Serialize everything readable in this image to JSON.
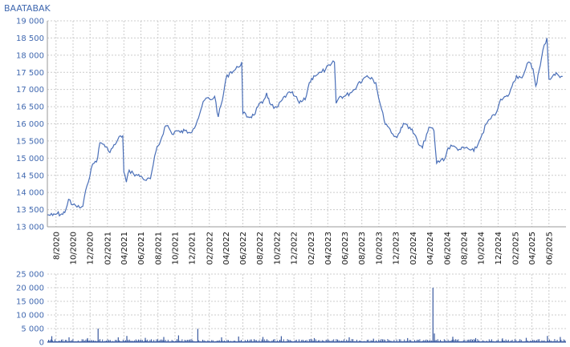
{
  "chart_data": [
    {
      "type": "line",
      "title": "BAATABAK",
      "xlabel": "",
      "ylabel": "",
      "ylim": [
        13000,
        19000
      ],
      "y_ticks": [
        13000,
        13500,
        14000,
        14500,
        15000,
        15500,
        16000,
        16500,
        17000,
        17500,
        18000,
        18500,
        19000
      ],
      "y_tick_labels": [
        "13 000",
        "13 500",
        "14 000",
        "14 500",
        "15 000",
        "15 500",
        "16 000",
        "16 500",
        "17 000",
        "17 500",
        "18 000",
        "18 500",
        "19 000"
      ],
      "x_ticks": [
        "2020-08",
        "2020-10",
        "2020-12",
        "2021-02",
        "2021-04",
        "2021-06",
        "2021-08",
        "2021-10",
        "2021-12",
        "2022-02",
        "2022-04",
        "2022-06",
        "2022-08",
        "2022-10",
        "2022-12",
        "2023-02",
        "2023-04",
        "2023-06",
        "2023-08",
        "2023-10",
        "2023-12",
        "2024-02",
        "2024-04",
        "2024-06",
        "2024-08",
        "2024-10",
        "2024-12",
        "2025-02",
        "2025-04",
        "2025-06"
      ],
      "x_tick_labels": [
        "8/2020",
        "10/2020",
        "12/2020",
        "02/2021",
        "04/2021",
        "06/2021",
        "08/2021",
        "10/2021",
        "12/2021",
        "02/2022",
        "04/2022",
        "06/2022",
        "08/2022",
        "10/2022",
        "12/2022",
        "02/2023",
        "04/2023",
        "06/2023",
        "08/2023",
        "10/2023",
        "12/2023",
        "02/2024",
        "04/2024",
        "06/2024",
        "08/2024",
        "10/2024",
        "12/2024",
        "02/2025",
        "04/2025",
        "06/2025"
      ],
      "xlim": [
        "2020-07-01",
        "2025-08-01"
      ],
      "grid": true,
      "color": "#4a6fb8",
      "series": [
        {
          "points": [
            [
              "2020-07-01",
              13350
            ],
            [
              "2020-07-20",
              13330
            ],
            [
              "2020-08-05",
              13380
            ],
            [
              "2020-08-25",
              13360
            ],
            [
              "2020-09-05",
              13500
            ],
            [
              "2020-09-15",
              13800
            ],
            [
              "2020-09-25",
              13650
            ],
            [
              "2020-10-10",
              13620
            ],
            [
              "2020-10-25",
              13550
            ],
            [
              "2020-11-05",
              13600
            ],
            [
              "2020-11-20",
              14200
            ],
            [
              "2020-12-05",
              14700
            ],
            [
              "2020-12-15",
              14850
            ],
            [
              "2020-12-28",
              15000
            ],
            [
              "2021-01-05",
              15450
            ],
            [
              "2021-01-20",
              15400
            ],
            [
              "2021-02-05",
              15200
            ],
            [
              "2021-02-20",
              15300
            ],
            [
              "2021-03-05",
              15450
            ],
            [
              "2021-03-20",
              15650
            ],
            [
              "2021-03-28",
              15650
            ],
            [
              "2021-04-01",
              14600
            ],
            [
              "2021-04-10",
              14300
            ],
            [
              "2021-04-20",
              14650
            ],
            [
              "2021-05-05",
              14550
            ],
            [
              "2021-05-20",
              14500
            ],
            [
              "2021-06-05",
              14450
            ],
            [
              "2021-06-20",
              14350
            ],
            [
              "2021-07-05",
              14400
            ],
            [
              "2021-07-15",
              14800
            ],
            [
              "2021-07-25",
              15200
            ],
            [
              "2021-08-10",
              15500
            ],
            [
              "2021-08-25",
              15900
            ],
            [
              "2021-09-05",
              15950
            ],
            [
              "2021-09-20",
              15700
            ],
            [
              "2021-10-05",
              15800
            ],
            [
              "2021-10-20",
              15750
            ],
            [
              "2021-11-05",
              15800
            ],
            [
              "2021-11-20",
              15750
            ],
            [
              "2021-12-05",
              15850
            ],
            [
              "2021-12-20",
              16100
            ],
            [
              "2022-01-05",
              16500
            ],
            [
              "2022-01-20",
              16750
            ],
            [
              "2022-02-05",
              16700
            ],
            [
              "2022-02-20",
              16800
            ],
            [
              "2022-03-05",
              16200
            ],
            [
              "2022-03-20",
              16700
            ],
            [
              "2022-04-01",
              17300
            ],
            [
              "2022-04-15",
              17500
            ],
            [
              "2022-05-01",
              17550
            ],
            [
              "2022-05-15",
              17650
            ],
            [
              "2022-05-28",
              17800
            ],
            [
              "2022-06-01",
              16300
            ],
            [
              "2022-06-20",
              16200
            ],
            [
              "2022-07-10",
              16250
            ],
            [
              "2022-07-25",
              16500
            ],
            [
              "2022-08-10",
              16600
            ],
            [
              "2022-08-25",
              16900
            ],
            [
              "2022-09-05",
              16600
            ],
            [
              "2022-09-20",
              16450
            ],
            [
              "2022-10-05",
              16500
            ],
            [
              "2022-10-20",
              16700
            ],
            [
              "2022-11-05",
              16850
            ],
            [
              "2022-11-20",
              16900
            ],
            [
              "2022-12-05",
              16800
            ],
            [
              "2022-12-20",
              16600
            ],
            [
              "2023-01-10",
              16700
            ],
            [
              "2023-01-25",
              17200
            ],
            [
              "2023-02-10",
              17400
            ],
            [
              "2023-02-25",
              17450
            ],
            [
              "2023-03-10",
              17500
            ],
            [
              "2023-03-25",
              17600
            ],
            [
              "2023-04-10",
              17700
            ],
            [
              "2023-04-25",
              17800
            ],
            [
              "2023-05-01",
              16600
            ],
            [
              "2023-05-15",
              16800
            ],
            [
              "2023-06-01",
              16800
            ],
            [
              "2023-06-20",
              16900
            ],
            [
              "2023-07-05",
              17000
            ],
            [
              "2023-07-20",
              17200
            ],
            [
              "2023-08-05",
              17300
            ],
            [
              "2023-08-20",
              17400
            ],
            [
              "2023-09-05",
              17350
            ],
            [
              "2023-09-20",
              17200
            ],
            [
              "2023-10-05",
              16600
            ],
            [
              "2023-10-20",
              16100
            ],
            [
              "2023-11-05",
              15900
            ],
            [
              "2023-11-20",
              15700
            ],
            [
              "2023-12-05",
              15600
            ],
            [
              "2023-12-20",
              15900
            ],
            [
              "2024-01-05",
              16000
            ],
            [
              "2024-01-20",
              15900
            ],
            [
              "2024-02-05",
              15700
            ],
            [
              "2024-02-20",
              15400
            ],
            [
              "2024-03-05",
              15300
            ],
            [
              "2024-03-20",
              15700
            ],
            [
              "2024-04-01",
              15900
            ],
            [
              "2024-04-15",
              15800
            ],
            [
              "2024-04-25",
              14850
            ],
            [
              "2024-05-10",
              14950
            ],
            [
              "2024-05-25",
              15000
            ],
            [
              "2024-06-05",
              15300
            ],
            [
              "2024-06-20",
              15350
            ],
            [
              "2024-07-05",
              15300
            ],
            [
              "2024-07-20",
              15250
            ],
            [
              "2024-08-05",
              15300
            ],
            [
              "2024-08-20",
              15250
            ],
            [
              "2024-09-05",
              15200
            ],
            [
              "2024-09-20",
              15400
            ],
            [
              "2024-10-05",
              15700
            ],
            [
              "2024-10-20",
              16000
            ],
            [
              "2024-11-05",
              16150
            ],
            [
              "2024-11-20",
              16250
            ],
            [
              "2024-12-05",
              16600
            ],
            [
              "2024-12-20",
              16750
            ],
            [
              "2025-01-05",
              16800
            ],
            [
              "2025-01-20",
              17100
            ],
            [
              "2025-02-05",
              17400
            ],
            [
              "2025-02-20",
              17350
            ],
            [
              "2025-03-05",
              17500
            ],
            [
              "2025-03-20",
              17800
            ],
            [
              "2025-04-05",
              17600
            ],
            [
              "2025-04-15",
              17100
            ],
            [
              "2025-05-01",
              17700
            ],
            [
              "2025-05-15",
              18300
            ],
            [
              "2025-05-25",
              18500
            ],
            [
              "2025-06-01",
              17300
            ],
            [
              "2025-06-15",
              17400
            ],
            [
              "2025-07-01",
              17450
            ],
            [
              "2025-07-20",
              17380
            ]
          ]
        }
      ]
    },
    {
      "type": "bar",
      "title": "",
      "xlabel": "",
      "ylabel": "",
      "ylim": [
        0,
        25000
      ],
      "y_ticks": [
        0,
        5000,
        10000,
        15000,
        20000,
        25000
      ],
      "y_tick_labels": [
        "0",
        "5 000",
        "10 000",
        "15 000",
        "20 000",
        "25 000"
      ],
      "xlim": [
        "2020-07-01",
        "2025-08-01"
      ],
      "grid": true,
      "color": "#3a5aa0",
      "baseline": 600,
      "points": [
        [
          "2020-07-15",
          2200
        ],
        [
          "2020-09-15",
          1800
        ],
        [
          "2020-11-20",
          1500
        ],
        [
          "2020-12-28",
          5000
        ],
        [
          "2021-03-10",
          1800
        ],
        [
          "2021-04-10",
          2300
        ],
        [
          "2021-06-15",
          1600
        ],
        [
          "2021-08-20",
          1900
        ],
        [
          "2021-10-12",
          2500
        ],
        [
          "2021-12-20",
          4900
        ],
        [
          "2022-03-15",
          1800
        ],
        [
          "2022-05-15",
          2100
        ],
        [
          "2022-08-10",
          1900
        ],
        [
          "2022-10-15",
          2200
        ],
        [
          "2023-02-10",
          1500
        ],
        [
          "2023-06-15",
          1800
        ],
        [
          "2023-09-10",
          1300
        ],
        [
          "2024-01-10",
          1500
        ],
        [
          "2024-04-10",
          20000
        ],
        [
          "2024-04-15",
          3200
        ],
        [
          "2024-06-20",
          2000
        ],
        [
          "2024-09-10",
          1500
        ],
        [
          "2024-12-15",
          1400
        ],
        [
          "2025-03-10",
          1600
        ],
        [
          "2025-05-25",
          2300
        ],
        [
          "2025-07-10",
          1900
        ]
      ]
    }
  ]
}
